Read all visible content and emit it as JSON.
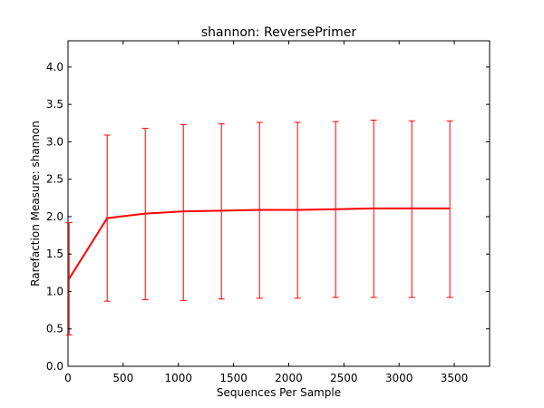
{
  "chart_data": {
    "type": "line",
    "title": "shannon: ReversePrimer",
    "xlabel": "Sequences Per Sample",
    "ylabel": "Rarefaction Measure: shannon",
    "xlim": [
      0,
      3820
    ],
    "ylim": [
      0,
      4.35
    ],
    "x_ticks": [
      0,
      500,
      1000,
      1500,
      2000,
      2500,
      3000,
      3500
    ],
    "y_ticks": [
      0.0,
      0.5,
      1.0,
      1.5,
      2.0,
      2.5,
      3.0,
      3.5,
      4.0
    ],
    "x_tick_labels": [
      "0",
      "500",
      "1000",
      "1500",
      "2000",
      "2500",
      "3000",
      "3500"
    ],
    "y_tick_labels": [
      "0.0",
      "0.5",
      "1.0",
      "1.5",
      "2.0",
      "2.5",
      "3.0",
      "3.5",
      "4.0"
    ],
    "grid": false,
    "series": [
      {
        "color": "#ff0000",
        "points": [
          {
            "x": 10,
            "y": 1.17,
            "err_low": 0.42,
            "err_high": 1.92
          },
          {
            "x": 355,
            "y": 1.98,
            "err_low": 0.87,
            "err_high": 3.09
          },
          {
            "x": 700,
            "y": 2.04,
            "err_low": 0.89,
            "err_high": 3.18
          },
          {
            "x": 1045,
            "y": 2.07,
            "err_low": 0.88,
            "err_high": 3.23
          },
          {
            "x": 1390,
            "y": 2.08,
            "err_low": 0.9,
            "err_high": 3.24
          },
          {
            "x": 1735,
            "y": 2.09,
            "err_low": 0.91,
            "err_high": 3.26
          },
          {
            "x": 2080,
            "y": 2.09,
            "err_low": 0.91,
            "err_high": 3.26
          },
          {
            "x": 2425,
            "y": 2.1,
            "err_low": 0.92,
            "err_high": 3.27
          },
          {
            "x": 2770,
            "y": 2.11,
            "err_low": 0.92,
            "err_high": 3.29
          },
          {
            "x": 3115,
            "y": 2.11,
            "err_low": 0.92,
            "err_high": 3.28
          },
          {
            "x": 3460,
            "y": 2.11,
            "err_low": 0.92,
            "err_high": 3.28
          }
        ]
      }
    ]
  }
}
